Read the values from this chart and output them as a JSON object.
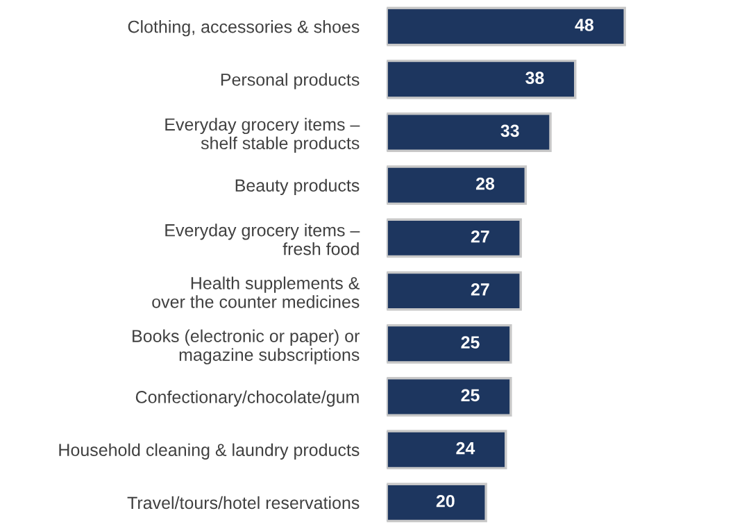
{
  "chart_data": {
    "type": "bar",
    "orientation": "horizontal",
    "categories": [
      "Clothing, accessories & shoes",
      "Personal products",
      "Everyday grocery items –\nshelf stable products",
      "Beauty products",
      "Everyday grocery items –\nfresh food",
      "Health supplements &\nover the counter medicines",
      "Books (electronic or paper) or\nmagazine subscriptions",
      "Confectionary/chocolate/gum",
      "Household cleaning & laundry products",
      "Travel/tours/hotel reservations"
    ],
    "values": [
      48,
      38,
      33,
      28,
      27,
      27,
      25,
      25,
      24,
      20
    ],
    "color": "#1d365f",
    "data_labels": true
  }
}
